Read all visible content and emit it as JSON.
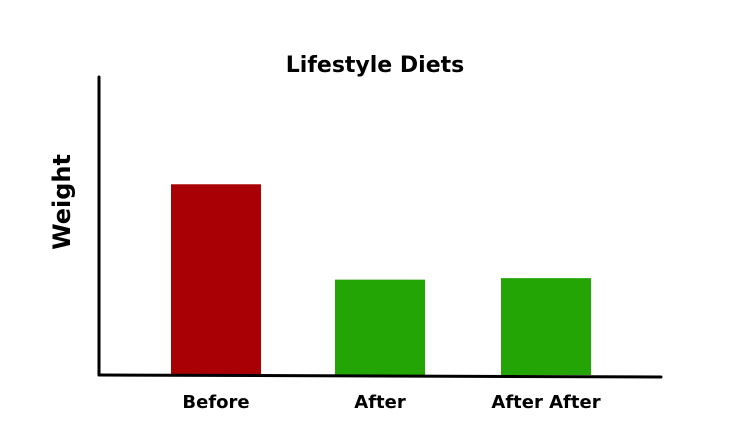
{
  "chart_data": {
    "type": "bar",
    "title": "Lifestyle Diets",
    "xlabel": "",
    "ylabel": "Weight",
    "categories": [
      "Before",
      "After",
      "After After"
    ],
    "values": [
      64,
      32,
      32.5
    ],
    "ylim": [
      0,
      100
    ],
    "bar_colors": [
      "#a80005",
      "#22a505",
      "#22a505"
    ],
    "axis_color": "#000000",
    "grid": false,
    "legend": "none"
  }
}
